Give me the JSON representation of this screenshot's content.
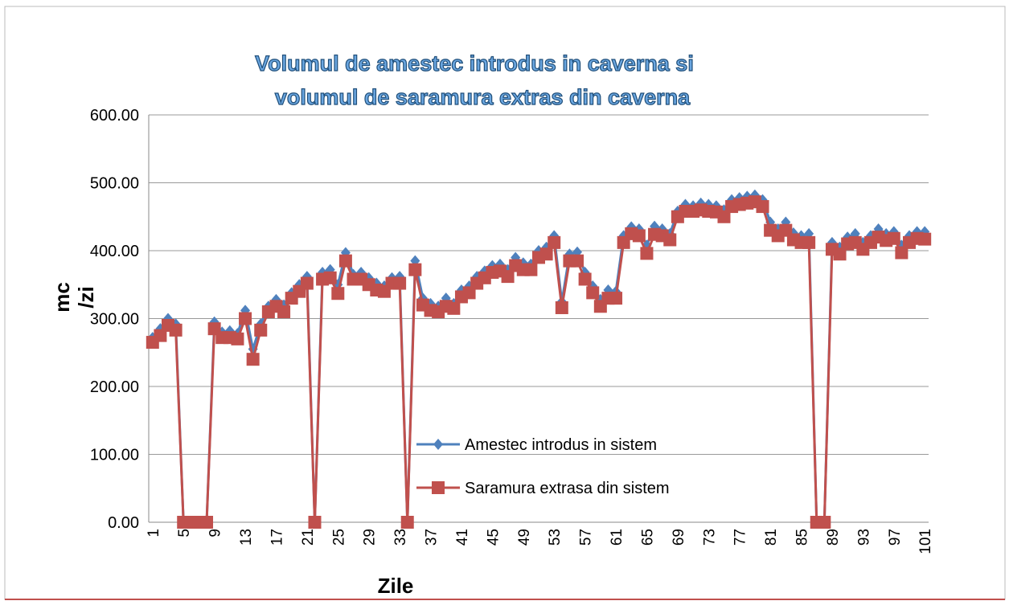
{
  "chart_data": {
    "type": "line",
    "title": [
      "Volumul de amestec introdus in caverna si",
      "volumul de saramura extras din caverna"
    ],
    "y_label": [
      "mc",
      "/zi"
    ],
    "x_label": "Zile",
    "categories": [
      "1",
      null,
      null,
      null,
      "5",
      null,
      null,
      null,
      "9",
      null,
      null,
      null,
      "13",
      null,
      null,
      null,
      "17",
      null,
      null,
      null,
      "21",
      null,
      null,
      null,
      "25",
      null,
      null,
      null,
      "29",
      null,
      null,
      null,
      "33",
      null,
      null,
      null,
      "37",
      null,
      null,
      null,
      "41",
      null,
      null,
      null,
      "45",
      null,
      null,
      null,
      "49",
      null,
      null,
      null,
      "53",
      null,
      null,
      null,
      "57",
      null,
      null,
      null,
      "61",
      null,
      null,
      null,
      "65",
      null,
      null,
      null,
      "69",
      null,
      null,
      null,
      "73",
      null,
      null,
      null,
      "77",
      null,
      null,
      null,
      "81",
      null,
      null,
      null,
      "85",
      null,
      null,
      null,
      "89",
      null,
      null,
      null,
      "93",
      null,
      null,
      null,
      "97",
      null,
      null,
      null,
      "101"
    ],
    "series": [
      {
        "name": "Amestec introdus in sistem",
        "color": "#4f81bd",
        "marker": "diamond",
        "values": [
          272,
          285,
          300,
          292,
          0,
          0,
          0,
          0,
          295,
          280,
          282,
          278,
          312,
          255,
          292,
          318,
          328,
          320,
          338,
          350,
          362,
          0,
          368,
          372,
          350,
          397,
          365,
          368,
          360,
          352,
          348,
          360,
          362,
          0,
          385,
          330,
          322,
          318,
          330,
          322,
          342,
          348,
          362,
          370,
          378,
          380,
          372,
          390,
          382,
          380,
          400,
          405,
          422,
          325,
          395,
          398,
          368,
          348,
          328,
          342,
          340,
          422,
          435,
          432,
          408,
          436,
          432,
          425,
          458,
          468,
          466,
          470,
          468,
          466,
          460,
          475,
          478,
          480,
          482,
          475,
          442,
          432,
          442,
          426,
          422,
          425,
          0,
          0,
          412,
          405,
          420,
          425,
          412,
          422,
          432,
          425,
          428,
          408,
          422,
          428,
          428
        ]
      },
      {
        "name": "Saramura extrasa din sistem",
        "color": "#c0504d",
        "marker": "square",
        "values": [
          265,
          275,
          290,
          283,
          0,
          0,
          0,
          0,
          285,
          272,
          272,
          270,
          300,
          240,
          283,
          310,
          318,
          310,
          330,
          340,
          352,
          0,
          358,
          360,
          337,
          385,
          358,
          358,
          350,
          342,
          340,
          352,
          352,
          0,
          372,
          320,
          312,
          310,
          318,
          315,
          332,
          338,
          352,
          360,
          368,
          370,
          362,
          378,
          372,
          372,
          390,
          395,
          412,
          316,
          385,
          385,
          358,
          338,
          318,
          330,
          330,
          412,
          425,
          422,
          396,
          424,
          422,
          416,
          450,
          458,
          458,
          460,
          458,
          457,
          450,
          465,
          468,
          470,
          472,
          465,
          430,
          422,
          430,
          416,
          412,
          412,
          0,
          0,
          402,
          395,
          410,
          412,
          402,
          412,
          420,
          415,
          418,
          397,
          412,
          418,
          417
        ]
      }
    ],
    "ylim": [
      0,
      600
    ],
    "yticks": [
      {
        "value": 0,
        "label": "0.00"
      },
      {
        "value": 100,
        "label": "100.00"
      },
      {
        "value": 200,
        "label": "200.00"
      },
      {
        "value": 300,
        "label": "300.00"
      },
      {
        "value": 400,
        "label": "400.00"
      },
      {
        "value": 500,
        "label": "500.00"
      },
      {
        "value": 600,
        "label": "600.00"
      }
    ],
    "grid": true
  }
}
